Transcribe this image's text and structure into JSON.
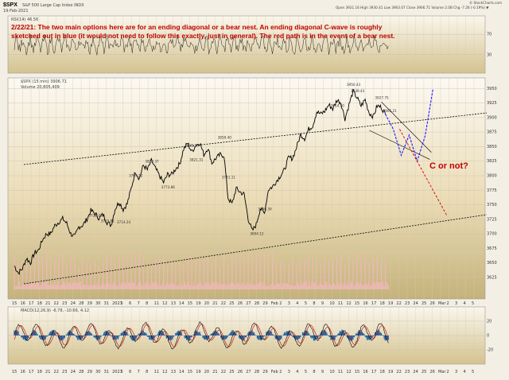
{
  "header": {
    "ticker": "$SPX",
    "name": "S&P 500 Large Cap Index  INDX",
    "date": "19-Feb-2021",
    "ohlc": "Open 3921.16  High 3930.41  Low 3903.07  Close 3906.71  Volume 2.0B  Chg -7.26 (-0.19%) ▼",
    "brand": "© StockCharts.com",
    "indicator_legends": {
      "rsi": "RSI(14) 46.56",
      "price": "$SPX (15 min) 3906.71",
      "volume": "Volume 20,805,409",
      "macd": "MACD(12,26,9) -6.78, -10.66, 4.12"
    }
  },
  "annotation": {
    "line1": "2/22/21:  The two main options here are for an ending diagonal or a bear nest.  An ending diagonal C-wave is roughly",
    "line2": "sketched out in blue (it would not need to follow this exactly, just in general).  The red path is in the event of a bear nest.",
    "wave_label": "C or not?"
  },
  "colors": {
    "price": "#000000",
    "rsi": "#222222",
    "volume": "#f0b8b8",
    "macd_line": "#000000",
    "signal_line": "#cc0000",
    "histogram": "#1f5f9f",
    "blue_path": "#1a1aff",
    "red_path": "#cc0000",
    "channel": "#000000",
    "background_top": "#fbf8f1",
    "background_bottom": "#c6b37c"
  },
  "chart_data": {
    "type": "line",
    "price_axis": {
      "ticks": [
        "3950",
        "3925",
        "3900",
        "3875",
        "3850",
        "3825",
        "3800",
        "3775",
        "3750",
        "3725",
        "3700",
        "3675",
        "3650",
        "3625"
      ],
      "ylim": [
        3610,
        3960
      ]
    },
    "rsi_axis": {
      "ticks": [
        "70",
        "30"
      ],
      "ylim": [
        0,
        100
      ]
    },
    "macd_axis": {
      "ticks": [
        "20",
        "0",
        "-20"
      ]
    },
    "x_ticks": [
      "15",
      "16",
      "17",
      "18",
      "21",
      "22",
      "23",
      "24",
      "28",
      "29",
      "30",
      "31",
      "2021",
      "5",
      "6",
      "7",
      "8",
      "11",
      "12",
      "13",
      "14",
      "15",
      "19",
      "20",
      "21",
      "22",
      "25",
      "26",
      "27",
      "28",
      "29",
      "Feb",
      "2",
      "3",
      "4",
      "5",
      "8",
      "9",
      "10",
      "11",
      "12",
      "15",
      "16",
      "17",
      "18",
      "19",
      "22",
      "23",
      "24",
      "25",
      "26",
      "Mar",
      "2",
      "3",
      "4",
      "5"
    ],
    "price_series": [
      3645,
      3633,
      3640,
      3658,
      3650,
      3667,
      3672,
      3690,
      3700,
      3700,
      3714,
      3720,
      3726,
      3718,
      3700,
      3695,
      3712,
      3715,
      3725,
      3740,
      3735,
      3727,
      3733,
      3720,
      3715,
      3743,
      3755,
      3742,
      3752,
      3778,
      3808,
      3795,
      3818,
      3810,
      3826,
      3812,
      3800,
      3788,
      3802,
      3802,
      3812,
      3820,
      3846,
      3856,
      3841,
      3852,
      3857,
      3836,
      3848,
      3822,
      3830,
      3836,
      3835,
      3762,
      3751,
      3778,
      3772,
      3768,
      3726,
      3705,
      3716,
      3744,
      3735,
      3776,
      3781,
      3791,
      3800,
      3810,
      3831,
      3830,
      3849,
      3871,
      3864,
      3880,
      3886,
      3910,
      3906,
      3911,
      3922,
      3915,
      3930,
      3926,
      3898,
      3922,
      3945,
      3934,
      3920,
      3931,
      3908,
      3902,
      3920,
      3918,
      3906
    ],
    "price_tags": [
      {
        "label": "3773.86",
        "x_index": 38
      },
      {
        "label": "3794.12",
        "x_index": 30
      },
      {
        "label": "3818.37",
        "x_index": 34
      },
      {
        "label": "3845.99",
        "x_index": 44
      },
      {
        "label": "3859.40",
        "x_index": 52
      },
      {
        "label": "3714.24",
        "x_index": 27
      },
      {
        "label": "3791.11",
        "x_index": 53
      },
      {
        "label": "3821.31",
        "x_index": 45
      },
      {
        "label": "3725.72",
        "x_index": 20
      },
      {
        "label": "3715.81",
        "x_index": 23
      },
      {
        "label": "3736.39",
        "x_index": 62
      },
      {
        "label": "3694.12",
        "x_index": 60
      },
      {
        "label": "3939.43",
        "x_index": 85
      },
      {
        "label": "3950.43",
        "x_index": 84
      },
      {
        "label": "3914.50",
        "x_index": 80
      },
      {
        "label": "3905.21",
        "x_index": 93
      },
      {
        "label": "3927.75",
        "x_index": 91
      }
    ],
    "projections": {
      "blue": [
        [
          3906,
          0
        ],
        [
          3880,
          1
        ],
        [
          3835,
          2
        ],
        [
          3870,
          3
        ],
        [
          3825,
          4
        ],
        [
          3868,
          5
        ],
        [
          3950,
          6
        ]
      ],
      "red_start": [
        3880,
        1.8
      ],
      "red_end": [
        3730,
        4.8
      ]
    }
  }
}
